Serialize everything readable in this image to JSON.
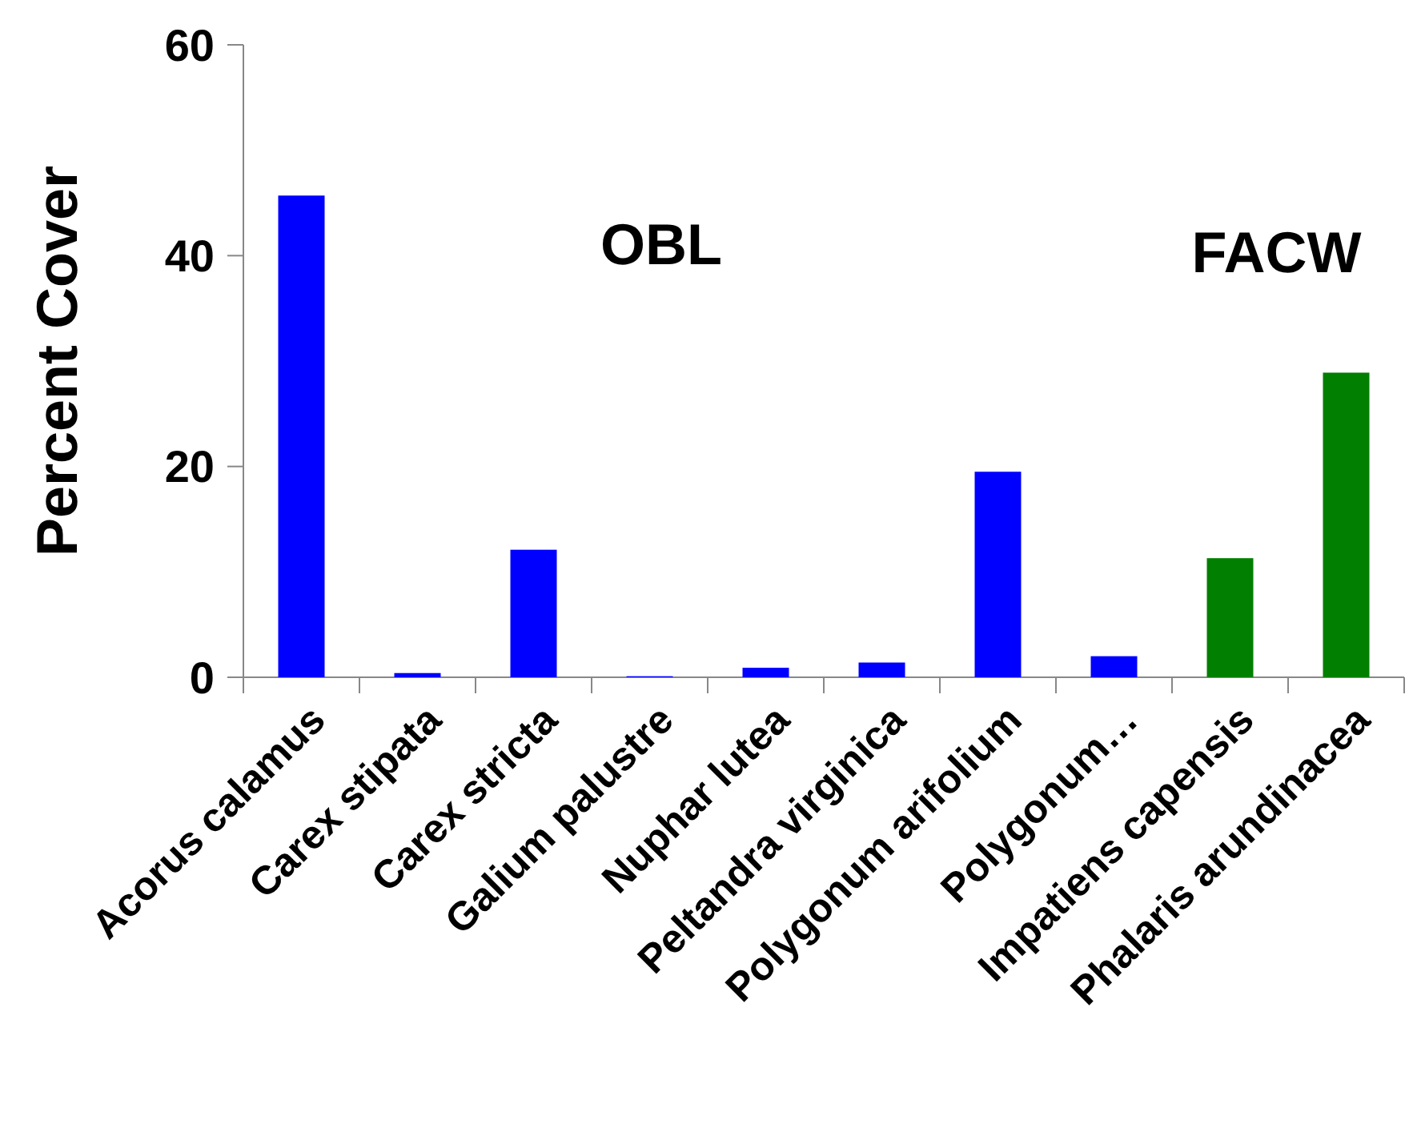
{
  "chart_data": {
    "type": "bar",
    "ylabel": "Percent Cover",
    "categories": [
      "Acorus calamus",
      "Carex stipata",
      "Carex stricta",
      "Galium palustre",
      "Nuphar lutea",
      "Peltandra virginica",
      "Polygonum arifolium",
      "Polygonum…",
      "Impatiens capensis",
      "Phalaris arundinacea"
    ],
    "values": [
      45.7,
      0.4,
      12.1,
      0.1,
      0.9,
      1.4,
      19.5,
      2.0,
      11.3,
      28.9
    ],
    "colors": [
      "#0000ff",
      "#0000ff",
      "#0000ff",
      "#0000ff",
      "#0000ff",
      "#0000ff",
      "#0000ff",
      "#0000ff",
      "#007f00",
      "#007f00"
    ],
    "ylim": [
      0,
      60
    ],
    "yticks": [
      0,
      20,
      40,
      60
    ],
    "grid": false,
    "annotations": [
      "OBL",
      "FACW"
    ]
  }
}
